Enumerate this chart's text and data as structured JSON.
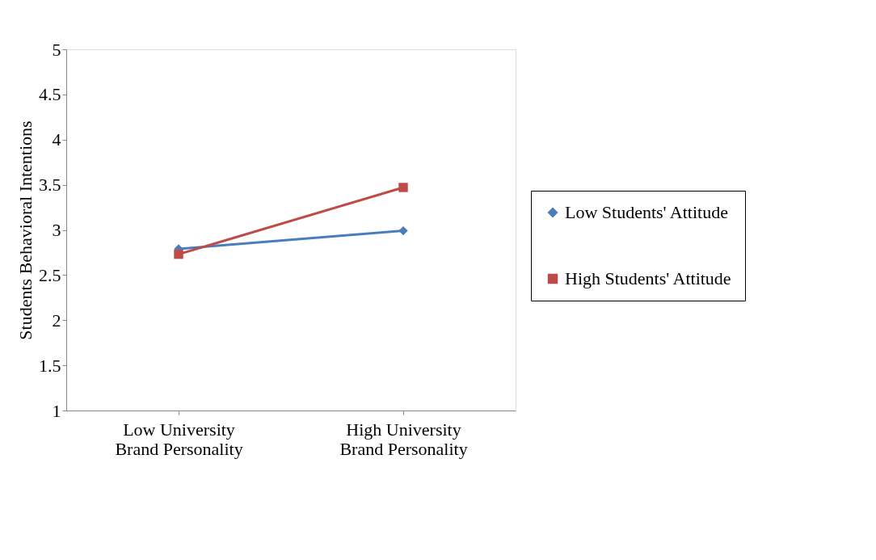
{
  "chart_data": {
    "type": "line",
    "ylabel": "Students Behavioral Intentions",
    "categories": [
      "Low University Brand Personality",
      "High University Brand Personality"
    ],
    "series": [
      {
        "name": "Low Students' Attitude",
        "color": "#4a7ebb",
        "marker": "diamond",
        "values": [
          2.79,
          2.99
        ]
      },
      {
        "name": "High Students' Attitude",
        "color": "#be4b48",
        "marker": "square",
        "values": [
          2.73,
          3.47
        ]
      }
    ],
    "ylim": [
      1,
      5
    ],
    "yticks": [
      1,
      1.5,
      2,
      2.5,
      3,
      3.5,
      4,
      4.5,
      5
    ],
    "grid": false,
    "legend": "right",
    "line_style": "solid"
  }
}
